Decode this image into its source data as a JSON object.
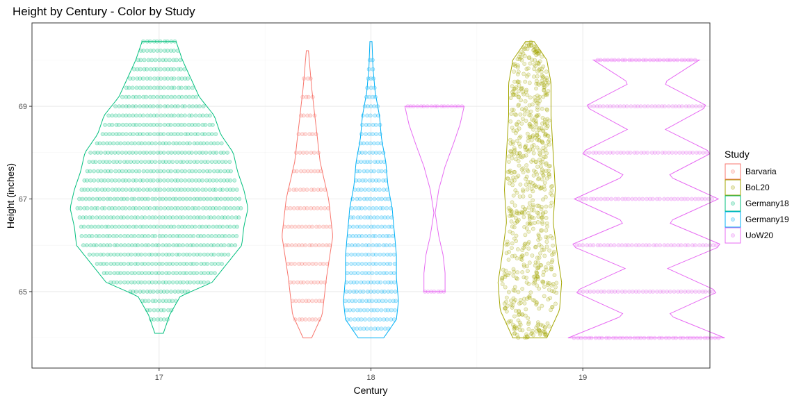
{
  "chart_data": {
    "type": "violin",
    "title": "Height by Century - Color by Study",
    "xlabel": "Century",
    "ylabel": "Height (inches)",
    "x_ticks": [
      "17",
      "18",
      "19"
    ],
    "y_ticks": [
      65,
      67,
      69
    ],
    "xlim": [
      16.4,
      19.6
    ],
    "ylim": [
      63.35,
      70.8
    ],
    "grid": true,
    "legend_title": "Study",
    "legend_position": "right",
    "series": [
      {
        "name": "Barvaria",
        "color": "#F8766D",
        "x_center": 17.7,
        "y_min": 64.0,
        "y_max": 70.2,
        "max_half_width": 0.12,
        "profile": [
          [
            64.0,
            0.02
          ],
          [
            64.5,
            0.07
          ],
          [
            65.3,
            0.09
          ],
          [
            66.2,
            0.12
          ],
          [
            67.0,
            0.1
          ],
          [
            67.8,
            0.06
          ],
          [
            68.6,
            0.04
          ],
          [
            69.4,
            0.02
          ],
          [
            70.2,
            0.005
          ]
        ],
        "levels": [
          64.4,
          64.8,
          65.2,
          65.6,
          66.0,
          66.4,
          66.8,
          67.2,
          67.6,
          68.0,
          68.4,
          68.8,
          69.2,
          69.6
        ]
      },
      {
        "name": "BoL20",
        "color": "#A3A500",
        "x_center": 18.75,
        "y_min": 64.0,
        "y_max": 70.4,
        "max_half_width": 0.16,
        "profile": [
          [
            64.0,
            0.08
          ],
          [
            64.6,
            0.14
          ],
          [
            65.2,
            0.15
          ],
          [
            65.8,
            0.13
          ],
          [
            66.5,
            0.11
          ],
          [
            67.2,
            0.12
          ],
          [
            68.0,
            0.11
          ],
          [
            68.8,
            0.1
          ],
          [
            69.5,
            0.1
          ],
          [
            70.0,
            0.08
          ],
          [
            70.4,
            0.02
          ]
        ],
        "levels": []
      },
      {
        "name": "Germany18",
        "color": "#00BF7D",
        "x_center": 17.0,
        "y_min": 64.1,
        "y_max": 70.4,
        "max_half_width": 0.42,
        "profile": [
          [
            64.1,
            0.02
          ],
          [
            64.5,
            0.05
          ],
          [
            64.9,
            0.1
          ],
          [
            65.2,
            0.25
          ],
          [
            65.6,
            0.32
          ],
          [
            66.0,
            0.39
          ],
          [
            66.4,
            0.4
          ],
          [
            66.8,
            0.42
          ],
          [
            67.2,
            0.4
          ],
          [
            67.6,
            0.37
          ],
          [
            68.0,
            0.35
          ],
          [
            68.4,
            0.29
          ],
          [
            68.8,
            0.26
          ],
          [
            69.2,
            0.19
          ],
          [
            69.6,
            0.15
          ],
          [
            70.0,
            0.11
          ],
          [
            70.4,
            0.08
          ]
        ],
        "levels": [
          64.4,
          64.6,
          64.8,
          65.0,
          65.2,
          65.4,
          65.6,
          65.8,
          66.0,
          66.2,
          66.4,
          66.6,
          66.8,
          67.0,
          67.2,
          67.4,
          67.6,
          67.8,
          68.0,
          68.2,
          68.4,
          68.6,
          68.8,
          69.0,
          69.2,
          69.4,
          69.6,
          69.8,
          70.0,
          70.2,
          70.4
        ]
      },
      {
        "name": "Germany19",
        "color": "#00B0F6",
        "x_center": 18.0,
        "y_min": 64.0,
        "y_max": 70.4,
        "max_half_width": 0.13,
        "profile": [
          [
            64.0,
            0.06
          ],
          [
            64.4,
            0.12
          ],
          [
            64.8,
            0.13
          ],
          [
            65.3,
            0.12
          ],
          [
            65.8,
            0.12
          ],
          [
            66.3,
            0.11
          ],
          [
            66.8,
            0.1
          ],
          [
            67.3,
            0.08
          ],
          [
            67.8,
            0.07
          ],
          [
            68.3,
            0.05
          ],
          [
            68.8,
            0.04
          ],
          [
            69.3,
            0.02
          ],
          [
            69.8,
            0.01
          ],
          [
            70.4,
            0.005
          ]
        ],
        "levels": [
          64.2,
          64.4,
          64.6,
          64.8,
          65.0,
          65.2,
          65.4,
          65.6,
          65.8,
          66.0,
          66.2,
          66.4,
          66.6,
          66.8,
          67.0,
          67.2,
          67.4,
          67.6,
          67.8,
          68.0,
          68.2,
          68.4,
          68.6,
          68.8,
          69.0,
          69.2,
          69.4,
          69.6,
          69.8,
          70.0
        ]
      },
      {
        "name": "UoW20",
        "color": "#E76BF3",
        "x_center": 18.3,
        "y_min": 65.0,
        "y_max": 69.0,
        "max_half_width": 0.14,
        "profile": [
          [
            65.0,
            0.05
          ],
          [
            65.4,
            0.05
          ],
          [
            65.8,
            0.04
          ],
          [
            66.2,
            0.02
          ],
          [
            66.7,
            0.003
          ],
          [
            67.2,
            0.02
          ],
          [
            67.7,
            0.05
          ],
          [
            68.2,
            0.09
          ],
          [
            68.6,
            0.12
          ],
          [
            69.0,
            0.14
          ]
        ],
        "levels": [
          65.0,
          69.0
        ]
      },
      {
        "name": "UoW20",
        "color": "#E76BF3",
        "x_center": 19.3,
        "y_min": 64.0,
        "y_max": 70.0,
        "max_half_width": 0.37,
        "profile": [
          [
            64.0,
            0.37
          ],
          [
            64.5,
            0.1
          ],
          [
            65.0,
            0.34
          ],
          [
            65.5,
            0.1
          ],
          [
            66.0,
            0.36
          ],
          [
            66.5,
            0.1
          ],
          [
            67.0,
            0.34
          ],
          [
            67.5,
            0.1
          ],
          [
            68.0,
            0.31
          ],
          [
            68.5,
            0.09
          ],
          [
            69.0,
            0.29
          ],
          [
            69.5,
            0.08
          ],
          [
            70.0,
            0.25
          ]
        ],
        "levels": [
          64.0,
          65.0,
          66.0,
          67.0,
          68.0,
          69.0,
          70.0
        ]
      }
    ],
    "legend_entries": [
      {
        "name": "Barvaria",
        "color": "#F8766D"
      },
      {
        "name": "BoL20",
        "color": "#A3A500"
      },
      {
        "name": "Germany18",
        "color": "#00BF7D"
      },
      {
        "name": "Germany19",
        "color": "#00B0F6"
      },
      {
        "name": "UoW20",
        "color": "#E76BF3"
      }
    ]
  }
}
